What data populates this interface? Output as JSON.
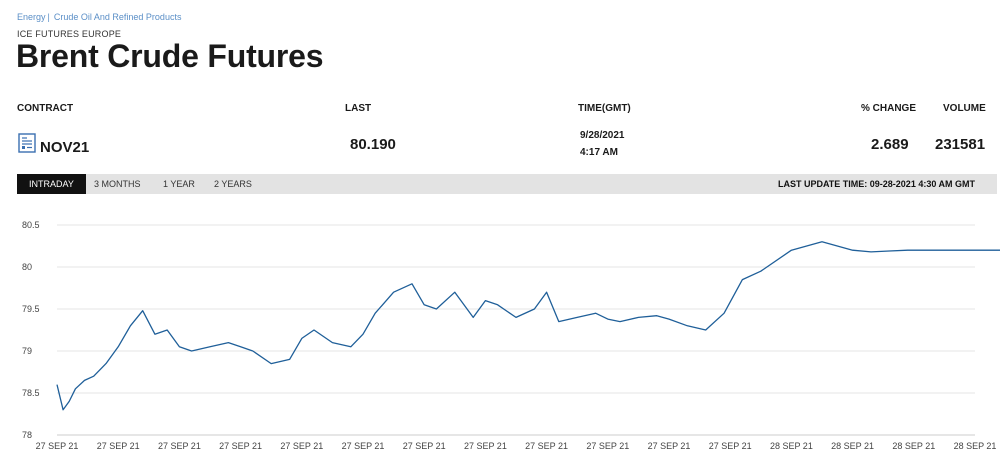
{
  "breadcrumb": {
    "items": [
      "Energy",
      "Crude Oil And Refined Products"
    ],
    "separator": "|"
  },
  "exchange": "ICE FUTURES EUROPE",
  "title": "Brent Crude Futures",
  "table": {
    "headers": {
      "contract": "CONTRACT",
      "last": "LAST",
      "time": "TIME(GMT)",
      "change": "% CHANGE",
      "volume": "VOLUME"
    },
    "row": {
      "contract": "NOV21",
      "last": "80.190",
      "date": "9/28/2021",
      "time": "4:17 AM",
      "change": "2.689",
      "volume": "231581"
    }
  },
  "tabs": [
    "INTRADAY",
    "3 MONTHS",
    "1 YEAR",
    "2 YEARS"
  ],
  "active_tab": "INTRADAY",
  "last_update": "LAST UPDATE TIME: 09-28-2021 4:30 AM GMT",
  "colors": {
    "line": "#1f5f99",
    "link": "#5b8fc7",
    "tab_bg": "#e3e3e3",
    "tab_active": "#111111"
  },
  "icons": {
    "contract": "document-chart-icon"
  },
  "chart_data": {
    "type": "line",
    "ylim": [
      78,
      80.5
    ],
    "yticks": [
      78,
      78.5,
      79,
      79.5,
      80,
      80.5
    ],
    "ytick_labels": [
      "78",
      "78.5",
      "79",
      "79.5",
      "80",
      "80.5"
    ],
    "xtick_labels": [
      "27 SEP 21",
      "27 SEP 21",
      "27 SEP 21",
      "27 SEP 21",
      "27 SEP 21",
      "27 SEP 21",
      "27 SEP 21",
      "27 SEP 21",
      "27 SEP 21",
      "27 SEP 21",
      "27 SEP 21",
      "27 SEP 21",
      "28 SEP 21",
      "28 SEP 21",
      "28 SEP 21",
      "28 SEP 21"
    ],
    "grid": "horizontal",
    "series": [
      {
        "x": [
          0,
          0.1,
          0.2,
          0.3,
          0.45,
          0.6,
          0.8,
          1.0,
          1.2,
          1.4,
          1.6,
          1.8,
          2.0,
          2.2,
          2.5,
          2.8,
          3.0,
          3.2,
          3.5,
          3.8,
          4.0,
          4.2,
          4.5,
          4.8,
          5.0,
          5.2,
          5.5,
          5.8,
          6.0,
          6.2,
          6.5,
          6.8,
          7.0,
          7.2,
          7.5,
          7.8,
          8.0,
          8.2,
          8.5,
          8.8,
          9.0,
          9.2,
          9.5,
          9.8,
          10.0,
          10.3,
          10.6,
          10.9,
          11.2,
          11.5,
          12.0,
          12.5,
          13.0,
          13.3,
          13.6,
          13.9,
          14.2,
          14.5,
          14.8,
          15.0,
          15.2,
          15.5,
          15.7,
          15.8,
          15.9
        ],
        "values": [
          78.6,
          78.3,
          78.4,
          78.55,
          78.65,
          78.7,
          78.85,
          79.05,
          79.3,
          79.48,
          79.2,
          79.25,
          79.05,
          79.0,
          79.05,
          79.1,
          79.05,
          79.0,
          78.85,
          78.9,
          79.15,
          79.25,
          79.1,
          79.05,
          79.2,
          79.45,
          79.7,
          79.8,
          79.55,
          79.5,
          79.7,
          79.4,
          79.6,
          79.55,
          79.4,
          79.5,
          79.7,
          79.35,
          79.4,
          79.45,
          79.38,
          79.35,
          79.4,
          79.42,
          79.38,
          79.3,
          79.25,
          79.45,
          79.85,
          79.95,
          80.2,
          80.3,
          80.2,
          80.18,
          80.19,
          80.2,
          80.2,
          80.2,
          80.2,
          80.2,
          80.2,
          80.2,
          80.2,
          80.2,
          80.2
        ]
      }
    ]
  }
}
